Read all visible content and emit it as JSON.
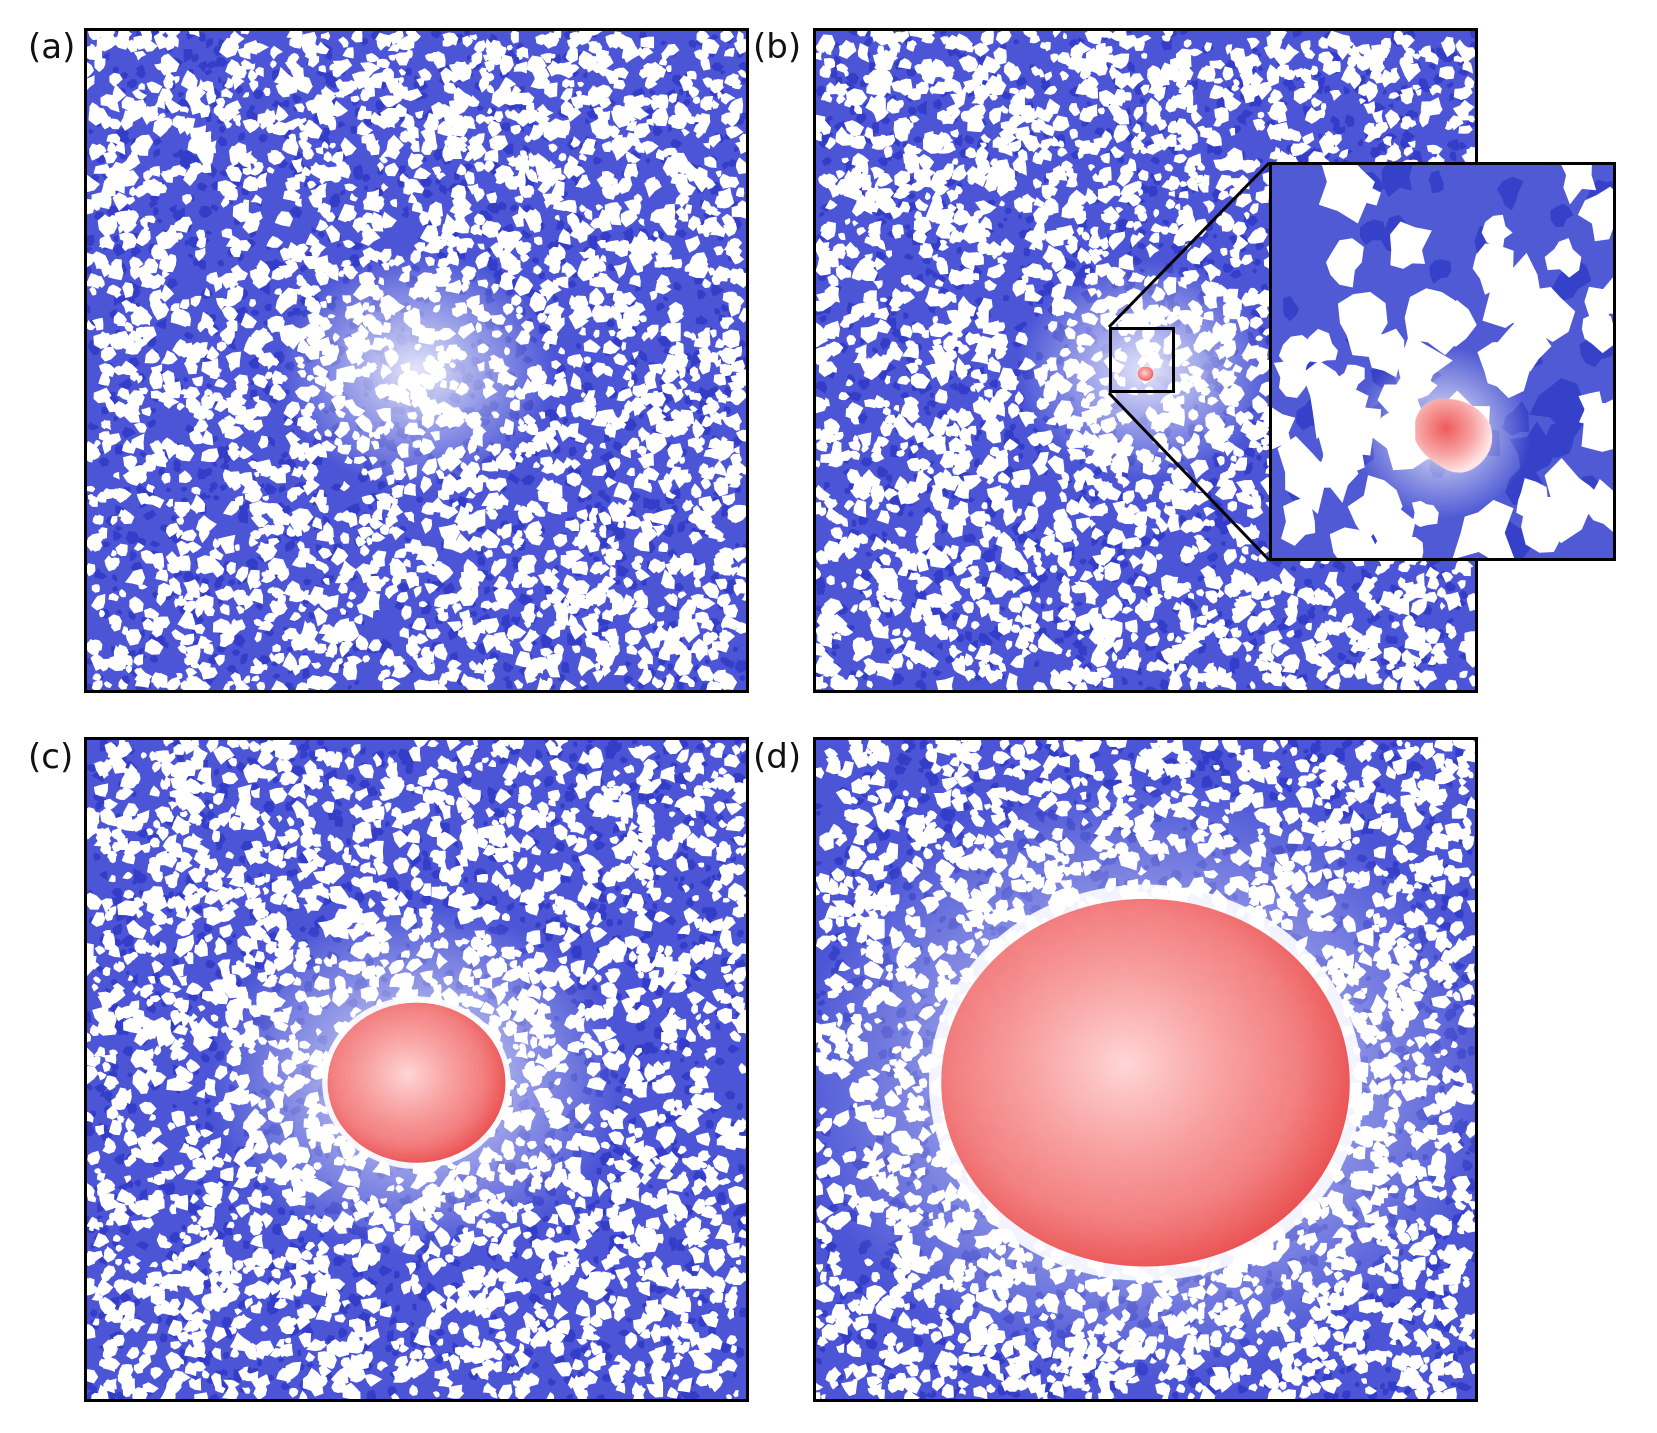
{
  "panels": [
    {
      "label": "(a)",
      "name": "panel-a",
      "seed": 11,
      "droplet_radius": 0,
      "halo": 0.35
    },
    {
      "label": "(b)",
      "name": "panel-b",
      "seed": 23,
      "droplet_radius": 0.012,
      "halo": 0.3
    },
    {
      "label": "(c)",
      "name": "panel-c",
      "seed": 37,
      "droplet_radius": 0.135,
      "halo": 0.22
    },
    {
      "label": "(d)",
      "name": "panel-d",
      "seed": 51,
      "droplet_radius": 0.31,
      "halo": 0.2
    }
  ],
  "colors": {
    "background_phase": "#4b55d6",
    "light_phase": "#ffffff",
    "droplet": "#f26b6b",
    "droplet_light": "#ffd6d6",
    "frame": "#000000"
  },
  "inset": {
    "seed": 71
  }
}
